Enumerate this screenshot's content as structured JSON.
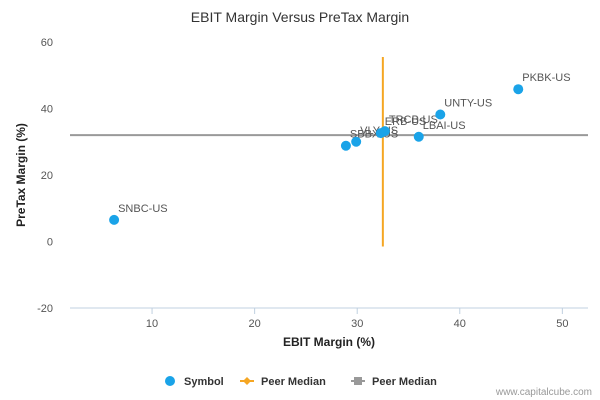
{
  "chart_data": {
    "type": "scatter",
    "title": "EBIT Margin Versus PreTax Margin",
    "xlabel": "EBIT Margin (%)",
    "ylabel": "PreTax Margin (%)",
    "xlim": [
      2,
      52.5
    ],
    "ylim": [
      -20,
      60
    ],
    "x_ticks": [
      10,
      20,
      30,
      40,
      50
    ],
    "y_ticks": [
      -20,
      0,
      20,
      40,
      60
    ],
    "points": [
      {
        "label": "SNBC-US",
        "x": 6.3,
        "y": 6.5
      },
      {
        "label": "SBBX-US",
        "x": 28.9,
        "y": 28.8
      },
      {
        "label": "VLY-US",
        "x": 29.9,
        "y": 30.0
      },
      {
        "label": "ERB-US",
        "x": 32.3,
        "y": 32.6
      },
      {
        "label": "TRCB-US",
        "x": 32.7,
        "y": 33.2
      },
      {
        "label": "LBAI-US",
        "x": 36.0,
        "y": 31.5
      },
      {
        "label": "UNTY-US",
        "x": 38.1,
        "y": 38.2
      },
      {
        "label": "PKBK-US",
        "x": 45.7,
        "y": 45.8
      }
    ],
    "peer_median_x": 32.5,
    "peer_median_y": 32.0,
    "peer_median_x_range": [
      -1.5,
      55.5
    ],
    "legend": [
      {
        "label": "Symbol",
        "kind": "dot"
      },
      {
        "label": "Peer Median",
        "kind": "vline"
      },
      {
        "label": "Peer Median",
        "kind": "hline"
      }
    ],
    "colors": {
      "point": "#1aa3e8",
      "median_x": "#f5a623",
      "median_y": "#999999",
      "grid": "#c0d0e0"
    }
  },
  "credit": "www.capitalcube.com"
}
